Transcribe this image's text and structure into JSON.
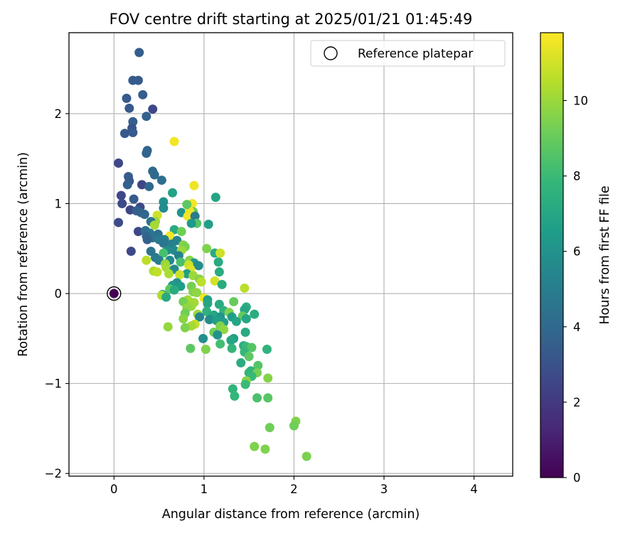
{
  "chart_data": {
    "type": "scatter",
    "title": "FOV centre drift starting at 2025/01/21 01:45:49",
    "xlabel": "Angular distance from reference (arcmin)",
    "ylabel": "Rotation from reference (arcmin)",
    "xlim": [
      -0.5,
      4.43
    ],
    "ylim": [
      -2.03,
      2.9
    ],
    "xticks": [
      0,
      1,
      2,
      3,
      4
    ],
    "xtick_labels": [
      "0",
      "1",
      "2",
      "3",
      "4"
    ],
    "yticks": [
      -2,
      -1,
      0,
      1,
      2
    ],
    "ytick_labels": [
      "−2",
      "−1",
      "0",
      "1",
      "2"
    ],
    "grid": true,
    "legend": {
      "placement": "top-right",
      "entries": [
        {
          "label": "Reference platepar",
          "marker": "open-circle"
        }
      ]
    },
    "reference_point": {
      "x": 0,
      "y": 0,
      "c": 0
    },
    "colorbar": {
      "label": "Hours from first FF file",
      "colormap": "viridis",
      "range": [
        0,
        11.8
      ],
      "ticks": [
        0,
        2,
        4,
        6,
        8,
        10
      ],
      "tick_labels": [
        "0",
        "2",
        "4",
        "6",
        "8",
        "10"
      ],
      "colors": [
        "#440154",
        "#482878",
        "#3e4989",
        "#31688e",
        "#26828e",
        "#1f9e89",
        "#35b779",
        "#6ece58",
        "#b5de2b",
        "#fde725"
      ]
    },
    "points": [
      {
        "x": 0.28,
        "y": 2.68,
        "c": 3.5
      },
      {
        "x": 0.21,
        "y": 2.37,
        "c": 3.4
      },
      {
        "x": 0.27,
        "y": 2.37,
        "c": 3.4
      },
      {
        "x": 0.32,
        "y": 2.21,
        "c": 3.5
      },
      {
        "x": 0.14,
        "y": 2.17,
        "c": 3.4
      },
      {
        "x": 0.17,
        "y": 2.06,
        "c": 3.3
      },
      {
        "x": 0.43,
        "y": 2.05,
        "c": 2.6
      },
      {
        "x": 0.36,
        "y": 1.97,
        "c": 3.6
      },
      {
        "x": 0.21,
        "y": 1.91,
        "c": 3.5
      },
      {
        "x": 0.2,
        "y": 1.84,
        "c": 3.1
      },
      {
        "x": 0.21,
        "y": 1.79,
        "c": 3.4
      },
      {
        "x": 0.12,
        "y": 1.78,
        "c": 3.3
      },
      {
        "x": 0.67,
        "y": 1.69,
        "c": 11.6
      },
      {
        "x": 0.37,
        "y": 1.59,
        "c": 3.9
      },
      {
        "x": 0.36,
        "y": 1.56,
        "c": 3.8
      },
      {
        "x": 0.05,
        "y": 1.45,
        "c": 2.6
      },
      {
        "x": 0.43,
        "y": 1.36,
        "c": 4.0
      },
      {
        "x": 0.45,
        "y": 1.32,
        "c": 4.1
      },
      {
        "x": 0.16,
        "y": 1.3,
        "c": 3.5
      },
      {
        "x": 0.53,
        "y": 1.26,
        "c": 4.3
      },
      {
        "x": 0.17,
        "y": 1.25,
        "c": 3.3
      },
      {
        "x": 0.15,
        "y": 1.21,
        "c": 3.6
      },
      {
        "x": 0.31,
        "y": 1.21,
        "c": 2.5
      },
      {
        "x": 0.39,
        "y": 1.19,
        "c": 4.0
      },
      {
        "x": 0.89,
        "y": 1.2,
        "c": 11.5
      },
      {
        "x": 0.65,
        "y": 1.12,
        "c": 6.8
      },
      {
        "x": 1.13,
        "y": 1.07,
        "c": 6.9
      },
      {
        "x": 0.08,
        "y": 1.09,
        "c": 2.6
      },
      {
        "x": 0.22,
        "y": 1.05,
        "c": 3.4
      },
      {
        "x": 0.55,
        "y": 1.02,
        "c": 5.9
      },
      {
        "x": 0.09,
        "y": 1.0,
        "c": 2.7
      },
      {
        "x": 0.87,
        "y": 1.0,
        "c": 11.6
      },
      {
        "x": 0.55,
        "y": 0.95,
        "c": 5.7
      },
      {
        "x": 0.29,
        "y": 0.96,
        "c": 2.7
      },
      {
        "x": 0.18,
        "y": 0.93,
        "c": 2.5
      },
      {
        "x": 0.25,
        "y": 0.92,
        "c": 3.6
      },
      {
        "x": 0.88,
        "y": 0.91,
        "c": 9.0
      },
      {
        "x": 0.3,
        "y": 0.9,
        "c": 3.7
      },
      {
        "x": 0.75,
        "y": 0.9,
        "c": 6.1
      },
      {
        "x": 0.34,
        "y": 0.88,
        "c": 3.9
      },
      {
        "x": 0.84,
        "y": 0.92,
        "c": 11.5
      },
      {
        "x": 0.48,
        "y": 0.87,
        "c": 10.9
      },
      {
        "x": 0.82,
        "y": 0.86,
        "c": 11.6
      },
      {
        "x": 0.9,
        "y": 0.86,
        "c": 4.9
      },
      {
        "x": 0.81,
        "y": 0.99,
        "c": 8.8
      },
      {
        "x": 0.92,
        "y": 0.78,
        "c": 8.6
      },
      {
        "x": 1.05,
        "y": 0.77,
        "c": 6.6
      },
      {
        "x": 0.05,
        "y": 0.79,
        "c": 2.7
      },
      {
        "x": 0.46,
        "y": 0.8,
        "c": 10.0
      },
      {
        "x": 0.41,
        "y": 0.8,
        "c": 4.5
      },
      {
        "x": 0.86,
        "y": 0.78,
        "c": 6.3
      },
      {
        "x": 0.45,
        "y": 0.76,
        "c": 10.2
      },
      {
        "x": 0.67,
        "y": 0.71,
        "c": 7.2
      },
      {
        "x": 0.75,
        "y": 0.69,
        "c": 9.2
      },
      {
        "x": 0.27,
        "y": 0.69,
        "c": 2.6
      },
      {
        "x": 0.35,
        "y": 0.7,
        "c": 4.4
      },
      {
        "x": 0.4,
        "y": 0.67,
        "c": 4.6
      },
      {
        "x": 0.49,
        "y": 0.66,
        "c": 4.4
      },
      {
        "x": 0.62,
        "y": 0.64,
        "c": 11.6
      },
      {
        "x": 0.36,
        "y": 0.64,
        "c": 4.0
      },
      {
        "x": 0.43,
        "y": 0.62,
        "c": 4.5
      },
      {
        "x": 0.5,
        "y": 0.6,
        "c": 4.8
      },
      {
        "x": 0.56,
        "y": 0.6,
        "c": 5.0
      },
      {
        "x": 0.37,
        "y": 0.6,
        "c": 3.7
      },
      {
        "x": 0.7,
        "y": 0.59,
        "c": 5.3
      },
      {
        "x": 0.55,
        "y": 0.56,
        "c": 4.6
      },
      {
        "x": 0.64,
        "y": 0.55,
        "c": 5.1
      },
      {
        "x": 0.77,
        "y": 0.54,
        "c": 9.6
      },
      {
        "x": 0.79,
        "y": 0.52,
        "c": 9.4
      },
      {
        "x": 1.03,
        "y": 0.5,
        "c": 9.5
      },
      {
        "x": 0.67,
        "y": 0.48,
        "c": 5.6
      },
      {
        "x": 0.41,
        "y": 0.47,
        "c": 4.6
      },
      {
        "x": 0.59,
        "y": 0.48,
        "c": 5.7
      },
      {
        "x": 0.75,
        "y": 0.48,
        "c": 10.0
      },
      {
        "x": 0.19,
        "y": 0.47,
        "c": 2.6
      },
      {
        "x": 0.55,
        "y": 0.45,
        "c": 8.3
      },
      {
        "x": 1.12,
        "y": 0.45,
        "c": 7.2
      },
      {
        "x": 1.18,
        "y": 0.45,
        "c": 10.9
      },
      {
        "x": 0.72,
        "y": 0.42,
        "c": 5.2
      },
      {
        "x": 0.46,
        "y": 0.4,
        "c": 4.8
      },
      {
        "x": 0.5,
        "y": 0.37,
        "c": 5.0
      },
      {
        "x": 0.62,
        "y": 0.37,
        "c": 5.6
      },
      {
        "x": 0.36,
        "y": 0.37,
        "c": 10.6
      },
      {
        "x": 0.84,
        "y": 0.37,
        "c": 9.6
      },
      {
        "x": 0.74,
        "y": 0.35,
        "c": 8.3
      },
      {
        "x": 1.16,
        "y": 0.35,
        "c": 7.2
      },
      {
        "x": 0.89,
        "y": 0.34,
        "c": 6.3
      },
      {
        "x": 0.57,
        "y": 0.33,
        "c": 9.9
      },
      {
        "x": 0.83,
        "y": 0.32,
        "c": 10.9
      },
      {
        "x": 0.94,
        "y": 0.31,
        "c": 5.7
      },
      {
        "x": 0.58,
        "y": 0.29,
        "c": 10.2
      },
      {
        "x": 0.67,
        "y": 0.27,
        "c": 5.6
      },
      {
        "x": 0.85,
        "y": 0.27,
        "c": 11.2
      },
      {
        "x": 0.44,
        "y": 0.25,
        "c": 10.4
      },
      {
        "x": 0.48,
        "y": 0.24,
        "c": 10.7
      },
      {
        "x": 1.17,
        "y": 0.24,
        "c": 7.3
      },
      {
        "x": 0.61,
        "y": 0.22,
        "c": 10.3
      },
      {
        "x": 0.81,
        "y": 0.22,
        "c": 6.6
      },
      {
        "x": 0.73,
        "y": 0.21,
        "c": 10.9
      },
      {
        "x": 0.88,
        "y": 0.2,
        "c": 10.0
      },
      {
        "x": 0.95,
        "y": 0.16,
        "c": 9.6
      },
      {
        "x": 1.12,
        "y": 0.14,
        "c": 11.0
      },
      {
        "x": 0.97,
        "y": 0.13,
        "c": 10.6
      },
      {
        "x": 0.7,
        "y": 0.12,
        "c": 6.0
      },
      {
        "x": 1.2,
        "y": 0.1,
        "c": 7.2
      },
      {
        "x": 0.65,
        "y": 0.09,
        "c": 6.3
      },
      {
        "x": 0.74,
        "y": 0.08,
        "c": 6.5
      },
      {
        "x": 0.86,
        "y": 0.08,
        "c": 9.3
      },
      {
        "x": 1.45,
        "y": 0.06,
        "c": 10.6
      },
      {
        "x": 0.62,
        "y": 0.05,
        "c": 8.7
      },
      {
        "x": 0.67,
        "y": 0.04,
        "c": 7.2
      },
      {
        "x": 0.88,
        "y": 0.02,
        "c": 9.5
      },
      {
        "x": 0.92,
        "y": 0.01,
        "c": 9.8
      },
      {
        "x": 0.54,
        "y": -0.01,
        "c": 7.1
      },
      {
        "x": 0.53,
        "y": -0.02,
        "c": 10.4
      },
      {
        "x": 0.58,
        "y": -0.04,
        "c": 7.2
      },
      {
        "x": 1.0,
        "y": -0.05,
        "c": 11.6
      },
      {
        "x": 0.82,
        "y": -0.07,
        "c": 10.2
      },
      {
        "x": 1.04,
        "y": -0.07,
        "c": 6.6
      },
      {
        "x": 0.77,
        "y": -0.09,
        "c": 9.3
      },
      {
        "x": 1.33,
        "y": -0.09,
        "c": 9.0
      },
      {
        "x": 0.89,
        "y": -0.1,
        "c": 10.2
      },
      {
        "x": 1.04,
        "y": -0.11,
        "c": 6.9
      },
      {
        "x": 1.17,
        "y": -0.12,
        "c": 7.2
      },
      {
        "x": 0.86,
        "y": -0.14,
        "c": 10.0
      },
      {
        "x": 1.47,
        "y": -0.15,
        "c": 7.4
      },
      {
        "x": 0.81,
        "y": -0.16,
        "c": 9.8
      },
      {
        "x": 1.45,
        "y": -0.18,
        "c": 7.0
      },
      {
        "x": 1.22,
        "y": -0.19,
        "c": 7.6
      },
      {
        "x": 1.03,
        "y": -0.2,
        "c": 7.5
      },
      {
        "x": 1.28,
        "y": -0.21,
        "c": 9.5
      },
      {
        "x": 0.79,
        "y": -0.22,
        "c": 9.2
      },
      {
        "x": 0.93,
        "y": -0.23,
        "c": 10.0
      },
      {
        "x": 1.56,
        "y": -0.23,
        "c": 7.3
      },
      {
        "x": 1.11,
        "y": -0.24,
        "c": 7.0
      },
      {
        "x": 1.31,
        "y": -0.26,
        "c": 6.5
      },
      {
        "x": 1.43,
        "y": -0.25,
        "c": 8.9
      },
      {
        "x": 0.95,
        "y": -0.26,
        "c": 5.4
      },
      {
        "x": 1.18,
        "y": -0.26,
        "c": 6.1
      },
      {
        "x": 1.47,
        "y": -0.28,
        "c": 7.0
      },
      {
        "x": 0.77,
        "y": -0.28,
        "c": 9.7
      },
      {
        "x": 1.06,
        "y": -0.29,
        "c": 5.7
      },
      {
        "x": 1.14,
        "y": -0.3,
        "c": 6.6
      },
      {
        "x": 1.36,
        "y": -0.31,
        "c": 7.0
      },
      {
        "x": 1.22,
        "y": -0.32,
        "c": 6.6
      },
      {
        "x": 0.9,
        "y": -0.34,
        "c": 10.7
      },
      {
        "x": 0.86,
        "y": -0.36,
        "c": 10.2
      },
      {
        "x": 1.18,
        "y": -0.36,
        "c": 9.5
      },
      {
        "x": 0.6,
        "y": -0.37,
        "c": 9.9
      },
      {
        "x": 0.79,
        "y": -0.38,
        "c": 9.5
      },
      {
        "x": 1.22,
        "y": -0.4,
        "c": 9.8
      },
      {
        "x": 1.11,
        "y": -0.43,
        "c": 9.2
      },
      {
        "x": 1.46,
        "y": -0.43,
        "c": 7.2
      },
      {
        "x": 1.15,
        "y": -0.46,
        "c": 6.0
      },
      {
        "x": 1.33,
        "y": -0.5,
        "c": 6.6
      },
      {
        "x": 0.99,
        "y": -0.5,
        "c": 5.8
      },
      {
        "x": 1.3,
        "y": -0.52,
        "c": 7.0
      },
      {
        "x": 1.18,
        "y": -0.56,
        "c": 8.2
      },
      {
        "x": 1.44,
        "y": -0.58,
        "c": 7.4
      },
      {
        "x": 1.47,
        "y": -0.59,
        "c": 8.0
      },
      {
        "x": 1.53,
        "y": -0.6,
        "c": 8.6
      },
      {
        "x": 1.31,
        "y": -0.61,
        "c": 7.7
      },
      {
        "x": 1.02,
        "y": -0.62,
        "c": 9.5
      },
      {
        "x": 1.7,
        "y": -0.62,
        "c": 7.6
      },
      {
        "x": 0.85,
        "y": -0.61,
        "c": 8.8
      },
      {
        "x": 1.45,
        "y": -0.65,
        "c": 7.8
      },
      {
        "x": 1.5,
        "y": -0.7,
        "c": 8.8
      },
      {
        "x": 1.41,
        "y": -0.77,
        "c": 7.3
      },
      {
        "x": 1.6,
        "y": -0.8,
        "c": 8.6
      },
      {
        "x": 1.52,
        "y": -0.86,
        "c": 7.6
      },
      {
        "x": 1.5,
        "y": -0.88,
        "c": 7.7
      },
      {
        "x": 1.59,
        "y": -0.88,
        "c": 9.3
      },
      {
        "x": 1.53,
        "y": -0.92,
        "c": 7.9
      },
      {
        "x": 1.71,
        "y": -0.94,
        "c": 9.6
      },
      {
        "x": 1.47,
        "y": -0.97,
        "c": 9.6
      },
      {
        "x": 1.46,
        "y": -1.01,
        "c": 8.0
      },
      {
        "x": 1.32,
        "y": -1.06,
        "c": 7.7
      },
      {
        "x": 1.34,
        "y": -1.14,
        "c": 7.8
      },
      {
        "x": 1.59,
        "y": -1.16,
        "c": 8.4
      },
      {
        "x": 1.71,
        "y": -1.16,
        "c": 8.7
      },
      {
        "x": 1.73,
        "y": -1.49,
        "c": 9.2
      },
      {
        "x": 2.02,
        "y": -1.42,
        "c": 9.5
      },
      {
        "x": 2.0,
        "y": -1.47,
        "c": 9.2
      },
      {
        "x": 1.56,
        "y": -1.7,
        "c": 9.5
      },
      {
        "x": 1.68,
        "y": -1.73,
        "c": 9.5
      },
      {
        "x": 2.14,
        "y": -1.81,
        "c": 9.4
      }
    ]
  }
}
